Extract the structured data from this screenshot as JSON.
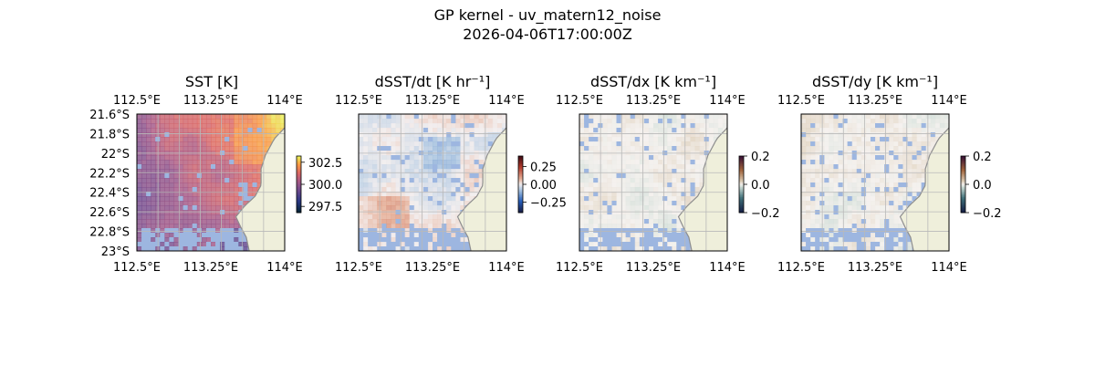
{
  "figure": {
    "title": "GP kernel - uv_matern12_noise",
    "subtitle": "2026-04-06T17:00:00Z"
  },
  "colors": {
    "ocean_mask": "#9db6e0",
    "land": "#efefdb",
    "coast": "#8e8e8e",
    "grid": "#b9b9b9"
  },
  "chart_data": [
    {
      "type": "heatmap",
      "title": "SST [K]",
      "x_ticks": [
        "112.5°E",
        "113.25°E",
        "114°E"
      ],
      "x_tick_values": [
        112.5,
        113.25,
        114.0
      ],
      "y_ticks": [
        "21.6°S",
        "21.8°S",
        "22°S",
        "22.2°S",
        "22.4°S",
        "22.6°S",
        "22.8°S",
        "23°S"
      ],
      "y_tick_values": [
        -21.6,
        -21.8,
        -22.0,
        -22.2,
        -22.4,
        -22.6,
        -22.8,
        -23.0
      ],
      "xlim": [
        112.5,
        114.0
      ],
      "ylim": [
        -23.0,
        -21.6
      ],
      "grid": true,
      "colormap": "thermal",
      "colorbar_ticks": [
        "302.5",
        "300.0",
        "297.5"
      ],
      "colorbar_tick_values": [
        302.5,
        300.0,
        297.5
      ],
      "colorbar_range": [
        296.8,
        303.2
      ],
      "value_range_shown": [
        298.5,
        302.6
      ]
    },
    {
      "type": "heatmap",
      "title": "dSST/dt [K hr⁻¹]",
      "x_ticks": [
        "112.5°E",
        "113.25°E",
        "114°E"
      ],
      "x_tick_values": [
        112.5,
        113.25,
        114.0
      ],
      "xlim": [
        112.5,
        114.0
      ],
      "ylim": [
        -23.0,
        -21.6
      ],
      "grid": true,
      "colormap": "balance",
      "colorbar_ticks": [
        "0.25",
        "0.00",
        "−0.25"
      ],
      "colorbar_tick_values": [
        0.25,
        0.0,
        -0.25
      ],
      "colorbar_range": [
        -0.4,
        0.4
      ],
      "value_range_shown": [
        -0.12,
        0.12
      ]
    },
    {
      "type": "heatmap",
      "title": "dSST/dx [K km⁻¹]",
      "x_ticks": [
        "112.5°E",
        "113.25°E",
        "114°E"
      ],
      "x_tick_values": [
        112.5,
        113.25,
        114.0
      ],
      "xlim": [
        112.5,
        114.0
      ],
      "ylim": [
        -23.0,
        -21.6
      ],
      "grid": true,
      "colormap": "curl",
      "colorbar_ticks": [
        "0.2",
        "0.0",
        "−0.2"
      ],
      "colorbar_tick_values": [
        0.2,
        0.0,
        -0.2
      ],
      "colorbar_range": [
        -0.2,
        0.2
      ],
      "value_range_shown": [
        -0.02,
        0.02
      ]
    },
    {
      "type": "heatmap",
      "title": "dSST/dy [K km⁻¹]",
      "x_ticks": [
        "112.5°E",
        "113.25°E",
        "114°E"
      ],
      "x_tick_values": [
        112.5,
        113.25,
        114.0
      ],
      "xlim": [
        112.5,
        114.0
      ],
      "ylim": [
        -23.0,
        -21.6
      ],
      "grid": true,
      "colormap": "curl",
      "colorbar_ticks": [
        "0.2",
        "0.0",
        "−0.2"
      ],
      "colorbar_tick_values": [
        0.2,
        0.0,
        -0.2
      ],
      "colorbar_range": [
        -0.2,
        0.2
      ],
      "value_range_shown": [
        -0.02,
        0.02
      ]
    }
  ]
}
